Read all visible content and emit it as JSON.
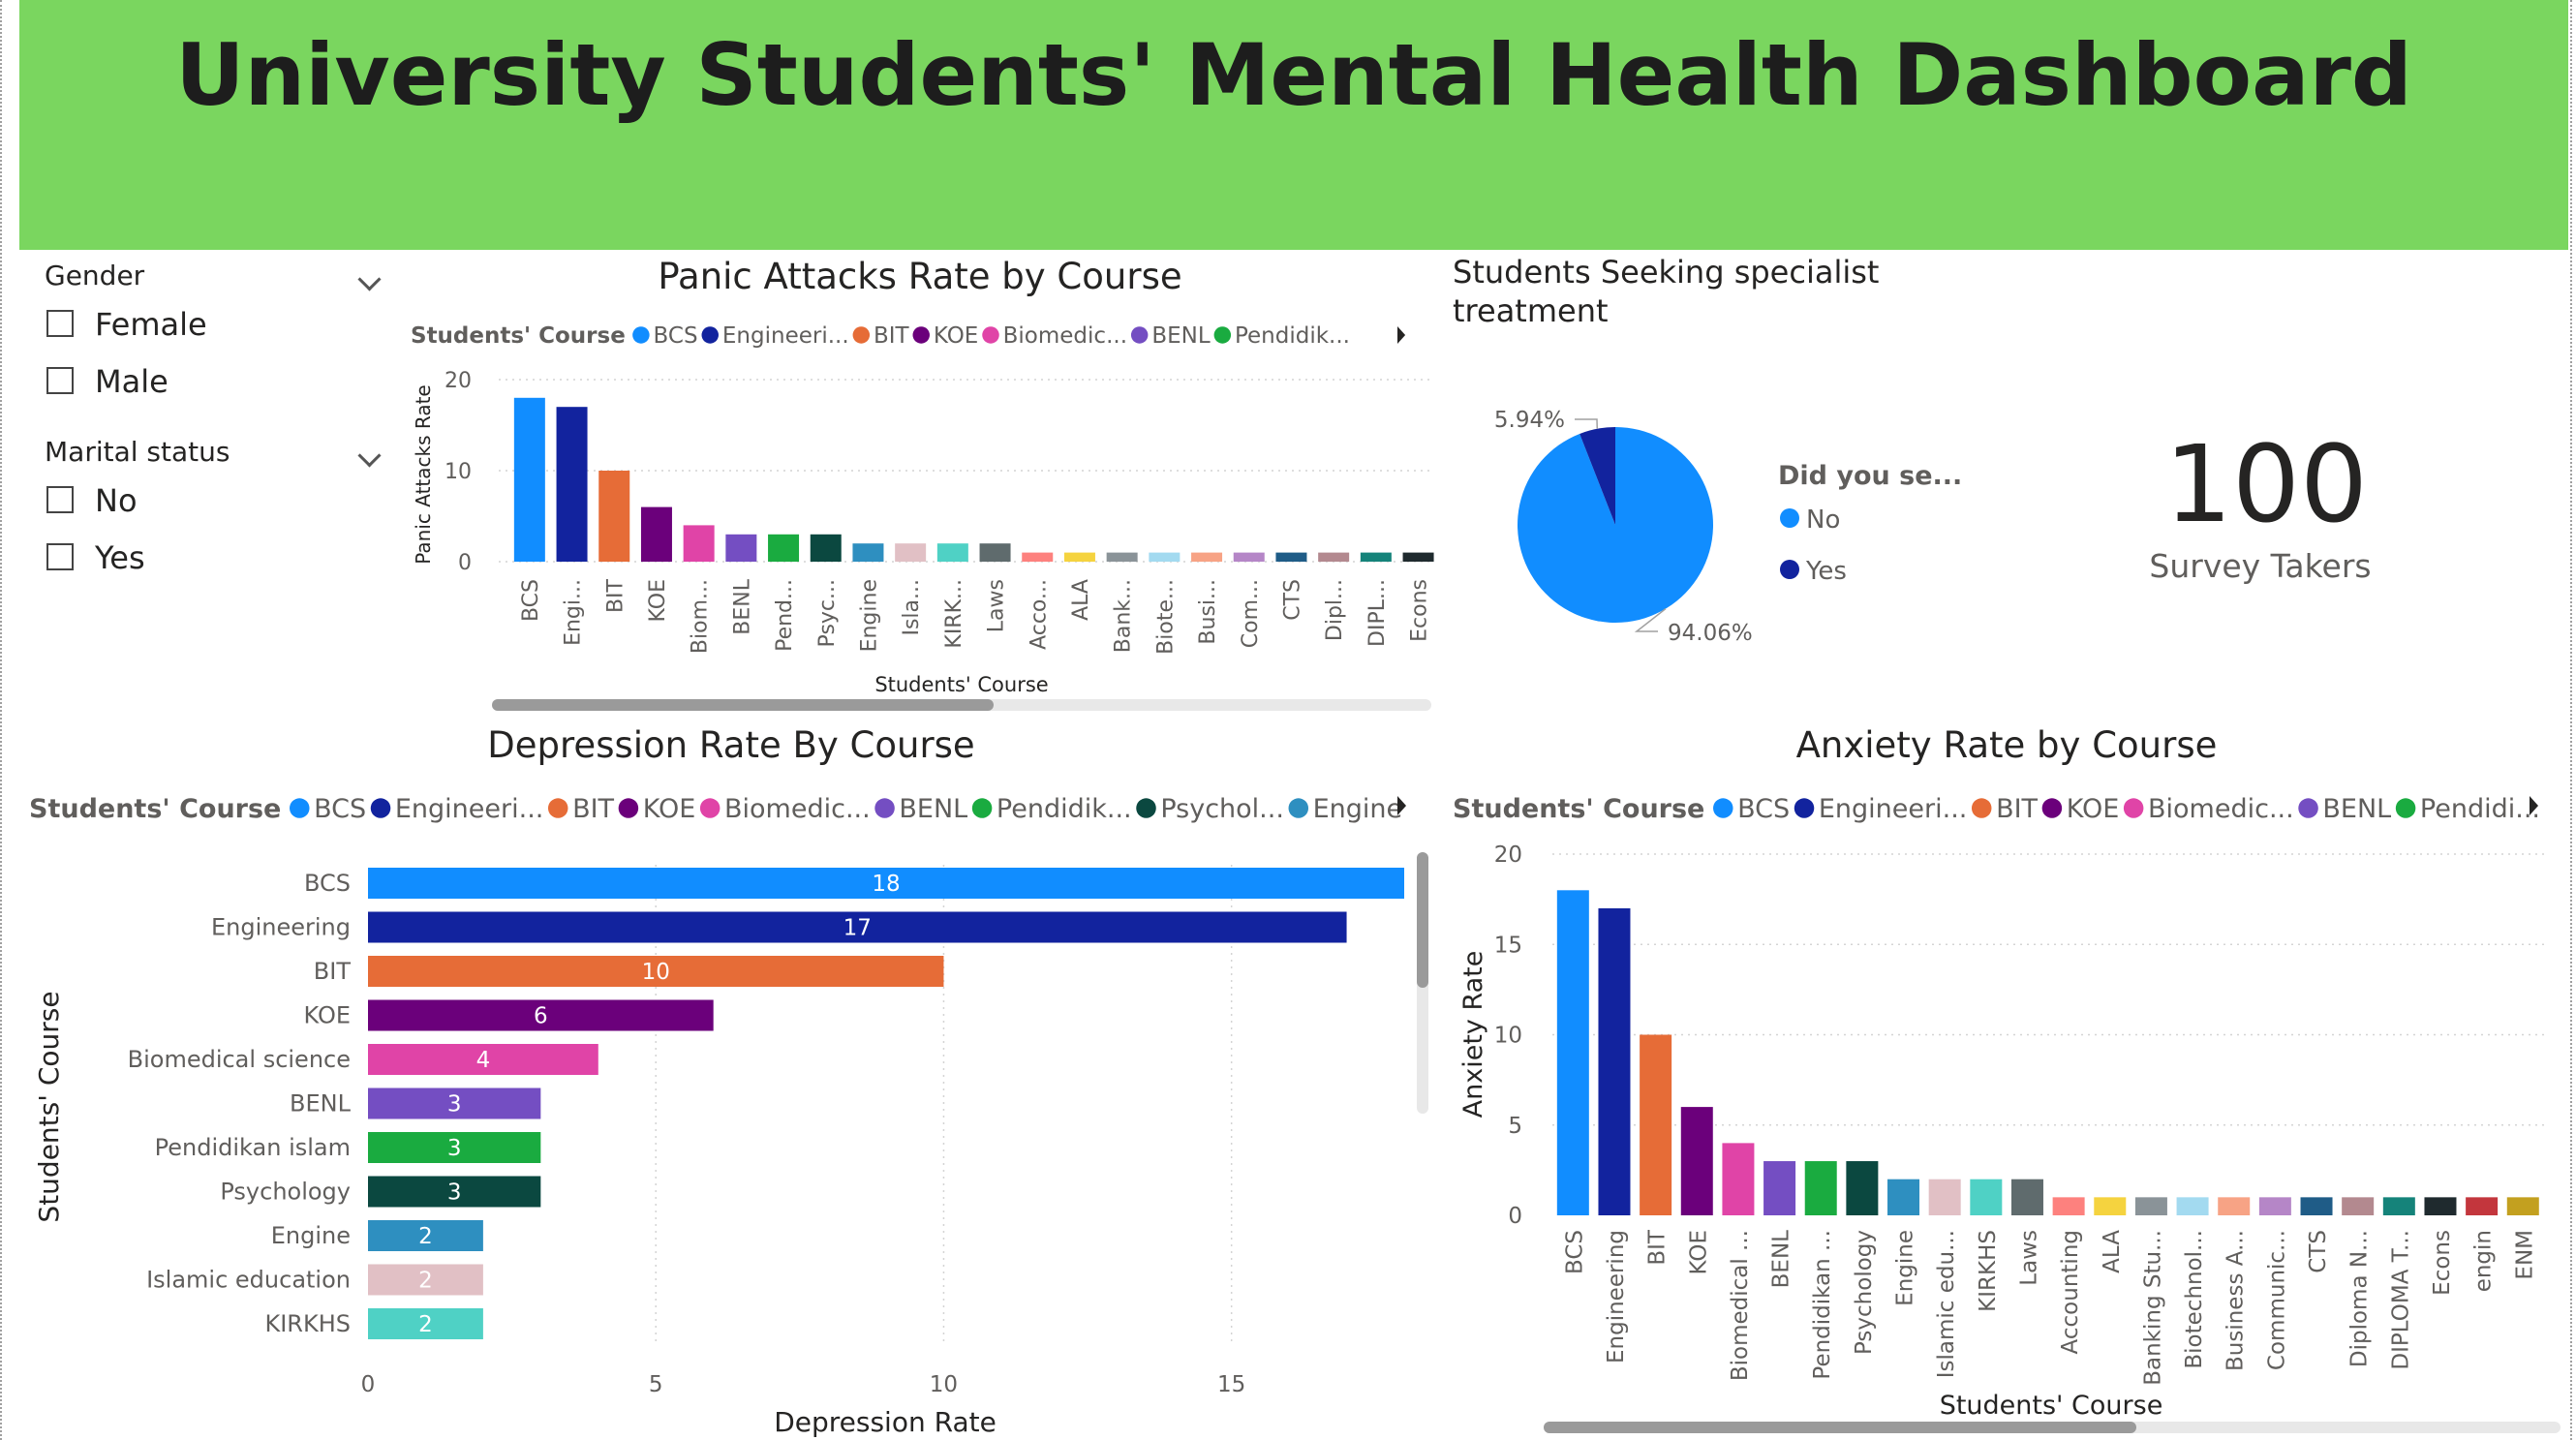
{
  "dashboard": {
    "title": "University Students' Mental Health Dashboard"
  },
  "slicers": {
    "gender": {
      "title": "Gender",
      "options": [
        "Female",
        "Male"
      ]
    },
    "marital": {
      "title": "Marital status",
      "options": [
        "No",
        "Yes"
      ]
    }
  },
  "colors": {
    "header_bg": "#7ad65f",
    "course": {
      "BCS": "#118dff",
      "Engineering": "#12239e",
      "BIT": "#e66c37",
      "KOE": "#6b007b",
      "Biomedical science": "#e044a7",
      "BENL": "#744ec2",
      "Pendidikan islam": "#1aab40",
      "Psychology": "#0b4840",
      "Engine": "#2e8fc0",
      "Islamic education": "#e1c0c5",
      "KIRKHS": "#4fd1c5",
      "Laws": "#5f6b6d",
      "Accounting": "#fd817e",
      "ALA": "#f5d33f",
      "Banking Studies": "#8a9398",
      "Biotechnology": "#a3daf0",
      "Business Administration": "#f7a385",
      "Communication": "#b586c7",
      "CTS": "#1f5c87",
      "Diploma Nursing": "#b3898f",
      "DIPLOMA TESL": "#15837a",
      "Econs": "#1f2a2e",
      "engin": "#c3363d",
      "ENM": "#c3a01f"
    },
    "pie_no": "#118dff",
    "pie_yes": "#12239e"
  },
  "kpi": {
    "value": "100",
    "label": "Survey Takers"
  },
  "chart_data": [
    {
      "id": "panic",
      "type": "bar",
      "title": "Panic Attacks Rate by Course",
      "legend": {
        "title": "Students' Course",
        "items": [
          "BCS",
          "Engineeri...",
          "BIT",
          "KOE",
          "Biomedic...",
          "BENL",
          "Pendidik..."
        ],
        "keys": [
          "BCS",
          "Engineering",
          "BIT",
          "KOE",
          "Biomedical science",
          "BENL",
          "Pendidikan islam"
        ]
      },
      "categories": [
        "BCS",
        "Engineering",
        "BIT",
        "KOE",
        "Biomedical science",
        "BENL",
        "Pendidikan islam",
        "Psychology",
        "Engine",
        "Islamic education",
        "KIRKHS",
        "Laws",
        "Accounting",
        "ALA",
        "Banking Studies",
        "Biotechnology",
        "Business Administration",
        "Communication",
        "CTS",
        "Diploma Nursing",
        "DIPLOMA TESL",
        "Econs"
      ],
      "tick_labels": [
        "BCS",
        "Engi...",
        "BIT",
        "KOE",
        "Biom...",
        "BENL",
        "Pend...",
        "Psyc...",
        "Engine",
        "Isla...",
        "KIRK...",
        "Laws",
        "Acco...",
        "ALA",
        "Bank...",
        "Biote...",
        "Busi...",
        "Com...",
        "CTS",
        "Dipl...",
        "DIPL...",
        "Econs"
      ],
      "values": [
        18,
        17,
        10,
        6,
        4,
        3,
        3,
        3,
        2,
        2,
        2,
        2,
        1,
        1,
        1,
        1,
        1,
        1,
        1,
        1,
        1,
        1
      ],
      "xlabel": "Students' Course",
      "ylabel": "Panic Attacks Rate",
      "ylim": [
        0,
        20
      ],
      "yticks": [
        0,
        10,
        20
      ],
      "grid": true
    },
    {
      "id": "pie",
      "type": "pie",
      "title": "Students Seeking specialist treatment",
      "title_lines": [
        "Students Seeking specialist",
        "treatment"
      ],
      "legend": {
        "title": "Did you se...",
        "items": [
          "No",
          "Yes"
        ]
      },
      "slices": [
        {
          "label": "No",
          "value": 94.06,
          "text": "94.06%"
        },
        {
          "label": "Yes",
          "value": 5.94,
          "text": "5.94%"
        }
      ]
    },
    {
      "id": "depression",
      "type": "bar",
      "orientation": "horizontal",
      "title": "Depression Rate By Course",
      "legend": {
        "title": "Students' Course",
        "items": [
          "BCS",
          "Engineeri...",
          "BIT",
          "KOE",
          "Biomedic...",
          "BENL",
          "Pendidik...",
          "Psychol...",
          "Engine"
        ],
        "keys": [
          "BCS",
          "Engineering",
          "BIT",
          "KOE",
          "Biomedical science",
          "BENL",
          "Pendidikan islam",
          "Psychology",
          "Engine"
        ]
      },
      "categories": [
        "BCS",
        "Engineering",
        "BIT",
        "KOE",
        "Biomedical science",
        "BENL",
        "Pendidikan islam",
        "Psychology",
        "Engine",
        "Islamic education",
        "KIRKHS"
      ],
      "values": [
        18,
        17,
        10,
        6,
        4,
        3,
        3,
        3,
        2,
        2,
        2
      ],
      "xlabel": "Depression Rate",
      "ylabel": "Students' Course",
      "xlim": [
        0,
        18
      ],
      "xticks": [
        0,
        5,
        10,
        15
      ],
      "grid": true
    },
    {
      "id": "anxiety",
      "type": "bar",
      "title": "Anxiety Rate by Course",
      "legend": {
        "title": "Students' Course",
        "items": [
          "BCS",
          "Engineeri...",
          "BIT",
          "KOE",
          "Biomedic...",
          "BENL",
          "Pendidi..."
        ],
        "keys": [
          "BCS",
          "Engineering",
          "BIT",
          "KOE",
          "Biomedical science",
          "BENL",
          "Pendidikan islam"
        ]
      },
      "categories": [
        "BCS",
        "Engineering",
        "BIT",
        "KOE",
        "Biomedical science",
        "BENL",
        "Pendidikan islam",
        "Psychology",
        "Engine",
        "Islamic education",
        "KIRKHS",
        "Laws",
        "Accounting",
        "ALA",
        "Banking Studies",
        "Biotechnology",
        "Business Administration",
        "Communication",
        "CTS",
        "Diploma Nursing",
        "DIPLOMA TESL",
        "Econs",
        "engin",
        "ENM"
      ],
      "tick_labels": [
        "BCS",
        "Engineering",
        "BIT",
        "KOE",
        "Biomedical ...",
        "BENL",
        "Pendidikan ...",
        "Psychology",
        "Engine",
        "Islamic edu...",
        "KIRKHS",
        "Laws",
        "Accounting",
        "ALA",
        "Banking Stu...",
        "Biotechnol...",
        "Business A...",
        "Communic...",
        "CTS",
        "Diploma N...",
        "DIPLOMA T...",
        "Econs",
        "engin",
        "ENM"
      ],
      "values": [
        18,
        17,
        10,
        6,
        4,
        3,
        3,
        3,
        2,
        2,
        2,
        2,
        1,
        1,
        1,
        1,
        1,
        1,
        1,
        1,
        1,
        1,
        1,
        1
      ],
      "xlabel": "Students' Course",
      "ylabel": "Anxiety Rate",
      "ylim": [
        0,
        20
      ],
      "yticks": [
        0,
        5,
        10,
        15,
        20
      ],
      "grid": true
    }
  ]
}
